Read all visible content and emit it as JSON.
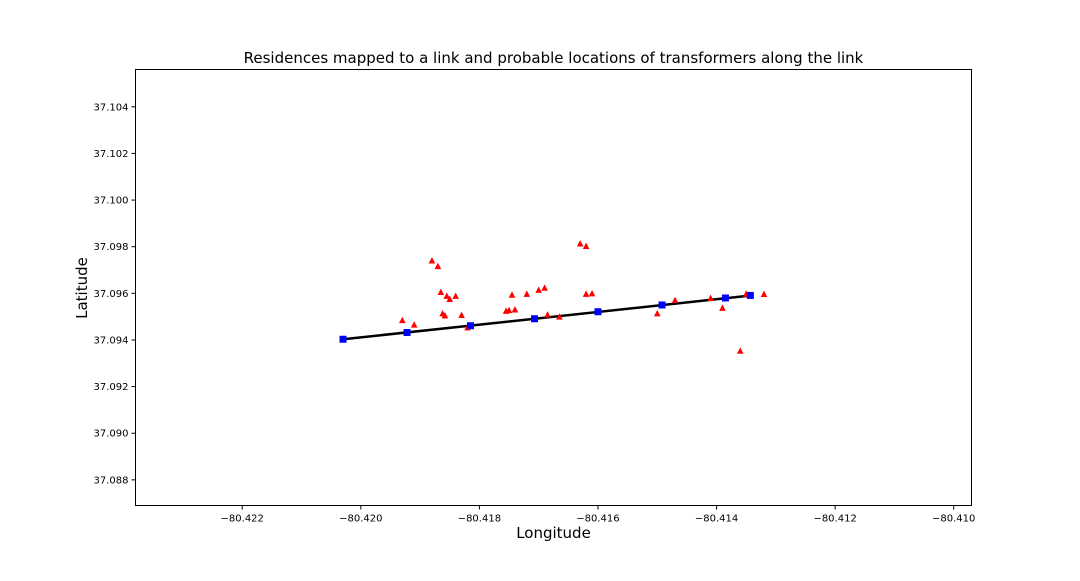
{
  "chart_data": {
    "type": "scatter",
    "title": "Residences mapped to a link and probable locations of transformers along the link",
    "xlabel": "Longitude",
    "ylabel": "Latitude",
    "xlim": [
      -80.4238,
      -80.4097
    ],
    "ylim": [
      37.0869,
      37.1056
    ],
    "x_ticks": [
      -80.422,
      -80.42,
      -80.418,
      -80.416,
      -80.414,
      -80.412,
      -80.41
    ],
    "x_tick_labels": [
      "−80.422",
      "−80.420",
      "−80.418",
      "−80.416",
      "−80.414",
      "−80.412",
      "−80.410"
    ],
    "y_ticks": [
      37.088,
      37.09,
      37.092,
      37.094,
      37.096,
      37.098,
      37.1,
      37.102,
      37.104
    ],
    "y_tick_labels": [
      "37.088",
      "37.090",
      "37.092",
      "37.094",
      "37.096",
      "37.098",
      "37.100",
      "37.102",
      "37.104"
    ],
    "grid": false,
    "legend": false,
    "colors": {
      "residence": "#ff0000",
      "transformer": "#0000ff",
      "link": "#000000"
    },
    "series": [
      {
        "kind": "line",
        "x": [
          -80.4203,
          -80.4134
        ],
        "y": [
          37.09403,
          37.09591
        ]
      },
      {
        "kind": "scatter",
        "marker": "square",
        "x": [
          -80.4203,
          -80.41922,
          -80.41815,
          -80.41707,
          -80.416,
          -80.41492,
          -80.41385,
          -80.41343
        ],
        "y": [
          37.09403,
          37.09432,
          37.09461,
          37.09491,
          37.09521,
          37.0955,
          37.0958,
          37.09591
        ]
      },
      {
        "kind": "scatter",
        "marker": "triangle",
        "x": [
          -80.4188,
          -80.4187,
          -80.41865,
          -80.41855,
          -80.4185,
          -80.4184,
          -80.4183,
          -80.4175,
          -80.4174,
          -80.4172,
          -80.417,
          -80.4169,
          -80.4163,
          -80.4162,
          -80.4161,
          -80.415,
          -80.4141,
          -80.4139,
          -80.4136,
          -80.4135,
          -80.4132,
          -80.4193,
          -80.4191,
          -80.41862,
          -80.41858,
          -80.4182,
          -80.41755,
          -80.41745,
          -80.41685,
          -80.41665,
          -80.4162,
          -80.4147
        ],
        "y": [
          37.0974,
          37.09716,
          37.09605,
          37.09588,
          37.09575,
          37.09588,
          37.09506,
          37.09527,
          37.0953,
          37.09597,
          37.09614,
          37.09623,
          37.09813,
          37.09802,
          37.09599,
          37.09513,
          37.09579,
          37.09537,
          37.09353,
          37.09597,
          37.09596,
          37.09484,
          37.09465,
          37.09513,
          37.09504,
          37.09453,
          37.09524,
          37.09593,
          37.09508,
          37.09499,
          37.09597,
          37.0957
        ]
      }
    ]
  }
}
